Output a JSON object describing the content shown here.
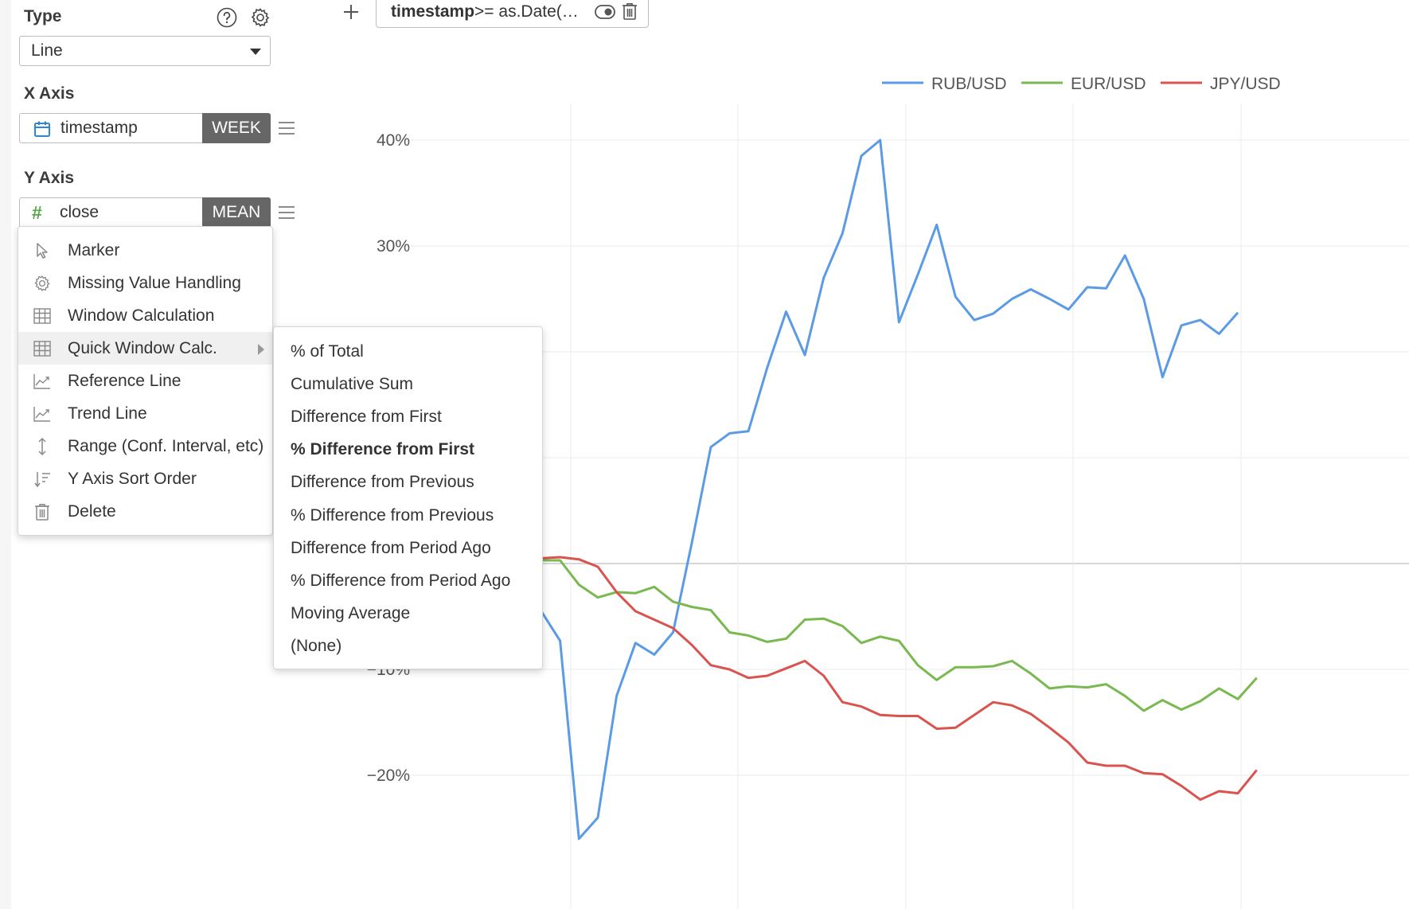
{
  "type_section": {
    "label": "Type",
    "selected": "Line"
  },
  "x_axis": {
    "label": "X Axis",
    "field": "timestamp",
    "aggregation": "WEEK"
  },
  "y_axis": {
    "label": "Y Axis",
    "field": "close",
    "aggregation": "MEAN",
    "field_icon": "#"
  },
  "filter": {
    "field": "timestamp",
    "expression": " >= as.Date(…"
  },
  "menu": {
    "items": [
      {
        "label": "Marker",
        "icon": "cursor-arrow-icon"
      },
      {
        "label": "Missing Value Handling",
        "icon": "gear-icon"
      },
      {
        "label": "Window Calculation",
        "icon": "table-grid-icon"
      },
      {
        "label": "Quick Window Calc.",
        "icon": "table-grid-icon",
        "has_submenu": true,
        "active": true
      },
      {
        "label": "Reference Line",
        "icon": "chart-line-icon"
      },
      {
        "label": "Trend Line",
        "icon": "chart-line-icon"
      },
      {
        "label": "Range (Conf. Interval, etc)",
        "icon": "vertical-arrows-icon"
      },
      {
        "label": "Y Axis Sort Order",
        "icon": "sort-icon"
      },
      {
        "label": "Delete",
        "icon": "trash-icon"
      }
    ]
  },
  "submenu": {
    "items": [
      "% of Total",
      "Cumulative Sum",
      "Difference from First",
      "% Difference from First",
      "Difference from Previous",
      "% Difference from Previous",
      "Difference from Period Ago",
      "% Difference from Period Ago",
      "Moving Average",
      "(None)"
    ],
    "selected": "% Difference from First"
  },
  "chart_data": {
    "type": "line",
    "y_ticks": [
      "40%",
      "30%",
      "−10%",
      "−20%"
    ],
    "y_tick_values": [
      40,
      30,
      -10,
      -20
    ],
    "ylim": [
      -25,
      43
    ],
    "grid": true,
    "legend_position": "top-right",
    "series": [
      {
        "name": "RUB/USD",
        "color": "#5b9be6",
        "points": [
          [
            0,
            -4.5
          ],
          [
            1,
            -7.3
          ],
          [
            2,
            -26
          ],
          [
            3,
            -24
          ],
          [
            4,
            -12.5
          ],
          [
            5,
            -7.5
          ],
          [
            6,
            -8.6
          ],
          [
            7,
            -6.5
          ],
          [
            8,
            2
          ],
          [
            9,
            11
          ],
          [
            10,
            12.3
          ],
          [
            11,
            12.5
          ],
          [
            12,
            18.5
          ],
          [
            13,
            23.8
          ],
          [
            14,
            19.7
          ],
          [
            15,
            27
          ],
          [
            16,
            31.2
          ],
          [
            17,
            38.5
          ],
          [
            18,
            40
          ],
          [
            19,
            22.8
          ],
          [
            20,
            27.3
          ],
          [
            21,
            32
          ],
          [
            22,
            25.2
          ],
          [
            23,
            23
          ],
          [
            24,
            23.6
          ],
          [
            25,
            25
          ],
          [
            26,
            25.9
          ],
          [
            27,
            25
          ],
          [
            28,
            24
          ],
          [
            29,
            26.1
          ],
          [
            30,
            26
          ],
          [
            31,
            29.1
          ],
          [
            32,
            25
          ],
          [
            33,
            17.6
          ],
          [
            34,
            22.5
          ],
          [
            35,
            23
          ],
          [
            36,
            21.7
          ],
          [
            37,
            23.7
          ]
        ]
      },
      {
        "name": "EUR/USD",
        "color": "#79b94f",
        "points": [
          [
            0,
            0.3
          ],
          [
            1,
            0.3
          ],
          [
            2,
            -2
          ],
          [
            3,
            -3.2
          ],
          [
            4,
            -2.7
          ],
          [
            5,
            -2.8
          ],
          [
            6,
            -2.2
          ],
          [
            7,
            -3.6
          ],
          [
            8,
            -4.1
          ],
          [
            9,
            -4.4
          ],
          [
            10,
            -6.5
          ],
          [
            11,
            -6.8
          ],
          [
            12,
            -7.4
          ],
          [
            13,
            -7.1
          ],
          [
            14,
            -5.3
          ],
          [
            15,
            -5.2
          ],
          [
            16,
            -5.9
          ],
          [
            17,
            -7.5
          ],
          [
            18,
            -6.9
          ],
          [
            19,
            -7.3
          ],
          [
            20,
            -9.6
          ],
          [
            21,
            -11
          ],
          [
            22,
            -9.8
          ],
          [
            23,
            -9.8
          ],
          [
            24,
            -9.7
          ],
          [
            25,
            -9.2
          ],
          [
            26,
            -10.4
          ],
          [
            27,
            -11.8
          ],
          [
            28,
            -11.6
          ],
          [
            29,
            -11.7
          ],
          [
            30,
            -11.4
          ],
          [
            31,
            -12.5
          ],
          [
            32,
            -13.9
          ],
          [
            33,
            -12.9
          ],
          [
            34,
            -13.8
          ],
          [
            35,
            -13
          ],
          [
            36,
            -11.8
          ],
          [
            37,
            -12.8
          ],
          [
            38,
            -10.8
          ]
        ]
      },
      {
        "name": "JPY/USD",
        "color": "#d9534f",
        "points": [
          [
            0,
            0.5
          ],
          [
            1,
            0.6
          ],
          [
            2,
            0.4
          ],
          [
            3,
            -0.3
          ],
          [
            4,
            -2.7
          ],
          [
            5,
            -4.5
          ],
          [
            6,
            -5.3
          ],
          [
            7,
            -6.1
          ],
          [
            8,
            -7.7
          ],
          [
            9,
            -9.6
          ],
          [
            10,
            -10
          ],
          [
            11,
            -10.8
          ],
          [
            12,
            -10.6
          ],
          [
            13,
            -9.9
          ],
          [
            14,
            -9.2
          ],
          [
            15,
            -10.6
          ],
          [
            16,
            -13.1
          ],
          [
            17,
            -13.5
          ],
          [
            18,
            -14.3
          ],
          [
            19,
            -14.4
          ],
          [
            20,
            -14.4
          ],
          [
            21,
            -15.6
          ],
          [
            22,
            -15.5
          ],
          [
            23,
            -14.3
          ],
          [
            24,
            -13.1
          ],
          [
            25,
            -13.4
          ],
          [
            26,
            -14.2
          ],
          [
            27,
            -15.5
          ],
          [
            28,
            -16.9
          ],
          [
            29,
            -18.8
          ],
          [
            30,
            -19.1
          ],
          [
            31,
            -19.1
          ],
          [
            32,
            -19.8
          ],
          [
            33,
            -19.9
          ],
          [
            34,
            -21
          ],
          [
            35,
            -22.3
          ],
          [
            36,
            -21.5
          ],
          [
            37,
            -21.7
          ],
          [
            38,
            -19.5
          ]
        ]
      }
    ]
  }
}
